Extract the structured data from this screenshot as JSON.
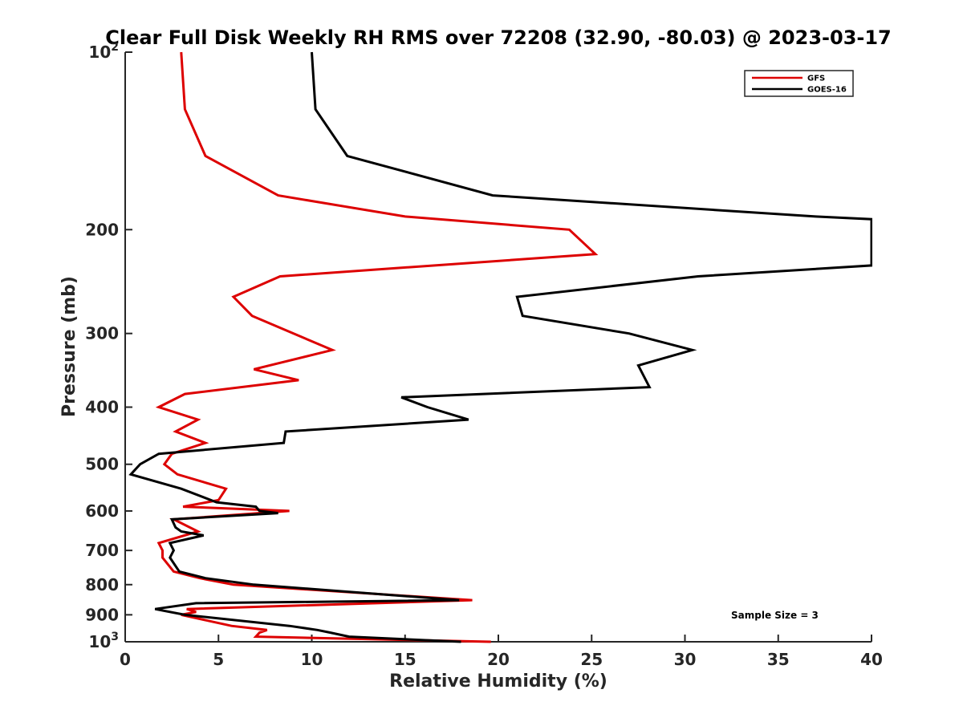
{
  "chart_data": {
    "type": "line",
    "title": "Clear Full Disk Weekly RH RMS over 72208 (32.90, -80.03) @ 2023-03-17",
    "xlabel": "Relative Humidity (%)",
    "ylabel": "Pressure (mb)",
    "xlim": [
      0,
      40
    ],
    "ylim": [
      100,
      1000
    ],
    "y_scale": "log",
    "y_reversed": true,
    "x_ticks": [
      0,
      5,
      10,
      15,
      20,
      25,
      30,
      35,
      40
    ],
    "x_tick_labels": [
      "0",
      "5",
      "10",
      "15",
      "20",
      "25",
      "30",
      "35",
      "40"
    ],
    "y_ticks": [
      100,
      200,
      300,
      400,
      500,
      600,
      700,
      800,
      900,
      1000
    ],
    "y_tick_labels": [
      {
        "base": "10",
        "exp": "2"
      },
      {
        "base": "200"
      },
      {
        "base": "300"
      },
      {
        "base": "400"
      },
      {
        "base": "500"
      },
      {
        "base": "600"
      },
      {
        "base": "700"
      },
      {
        "base": "800"
      },
      {
        "base": "900"
      },
      {
        "base": "10",
        "exp": "3"
      }
    ],
    "grid": false,
    "legend_position": "top-right",
    "annotation": "Sample Size = 3",
    "series": [
      {
        "name": "GFS",
        "color": "#dd0000",
        "points": [
          [
            3.0,
            100
          ],
          [
            3.2,
            125
          ],
          [
            4.3,
            150
          ],
          [
            8.2,
            175
          ],
          [
            15.0,
            190
          ],
          [
            23.8,
            200
          ],
          [
            25.2,
            220
          ],
          [
            8.3,
            240
          ],
          [
            5.8,
            260
          ],
          [
            6.8,
            280
          ],
          [
            11.1,
            320
          ],
          [
            6.9,
            345
          ],
          [
            9.3,
            360
          ],
          [
            3.2,
            380
          ],
          [
            1.8,
            400
          ],
          [
            3.9,
            420
          ],
          [
            2.7,
            440
          ],
          [
            4.3,
            460
          ],
          [
            2.5,
            480
          ],
          [
            2.1,
            500
          ],
          [
            2.8,
            520
          ],
          [
            5.4,
            550
          ],
          [
            5.0,
            575
          ],
          [
            3.1,
            590
          ],
          [
            8.8,
            600
          ],
          [
            2.6,
            620
          ],
          [
            3.9,
            650
          ],
          [
            1.8,
            680
          ],
          [
            2.0,
            700
          ],
          [
            2.0,
            720
          ],
          [
            2.6,
            760
          ],
          [
            4.0,
            780
          ],
          [
            5.8,
            800
          ],
          [
            18.6,
            850
          ],
          [
            3.3,
            880
          ],
          [
            3.8,
            890
          ],
          [
            3.0,
            900
          ],
          [
            5.7,
            940
          ],
          [
            7.6,
            955
          ],
          [
            7.2,
            965
          ],
          [
            7.0,
            980
          ],
          [
            19.6,
            1000
          ]
        ]
      },
      {
        "name": "GOES-16",
        "color": "#000000",
        "points": [
          [
            10.0,
            100
          ],
          [
            10.2,
            125
          ],
          [
            11.9,
            150
          ],
          [
            19.7,
            175
          ],
          [
            37.0,
            190
          ],
          [
            40.0,
            192
          ],
          [
            40.0,
            230
          ],
          [
            30.7,
            240
          ],
          [
            21.0,
            260
          ],
          [
            21.3,
            280
          ],
          [
            27.0,
            300
          ],
          [
            30.4,
            320
          ],
          [
            27.5,
            340
          ],
          [
            28.1,
            370
          ],
          [
            14.8,
            385
          ],
          [
            16.2,
            400
          ],
          [
            18.4,
            420
          ],
          [
            8.6,
            440
          ],
          [
            8.5,
            460
          ],
          [
            1.8,
            480
          ],
          [
            0.8,
            500
          ],
          [
            0.3,
            520
          ],
          [
            3.0,
            550
          ],
          [
            4.9,
            580
          ],
          [
            7.0,
            590
          ],
          [
            7.2,
            600
          ],
          [
            8.2,
            605
          ],
          [
            2.5,
            620
          ],
          [
            2.7,
            640
          ],
          [
            3.0,
            650
          ],
          [
            4.2,
            660
          ],
          [
            2.4,
            680
          ],
          [
            2.6,
            700
          ],
          [
            2.4,
            720
          ],
          [
            2.9,
            760
          ],
          [
            4.3,
            780
          ],
          [
            6.9,
            800
          ],
          [
            17.9,
            850
          ],
          [
            3.8,
            860
          ],
          [
            1.6,
            880
          ],
          [
            3.2,
            900
          ],
          [
            8.8,
            940
          ],
          [
            10.3,
            955
          ],
          [
            11.0,
            965
          ],
          [
            12.0,
            980
          ],
          [
            18.0,
            1000
          ]
        ]
      }
    ]
  }
}
